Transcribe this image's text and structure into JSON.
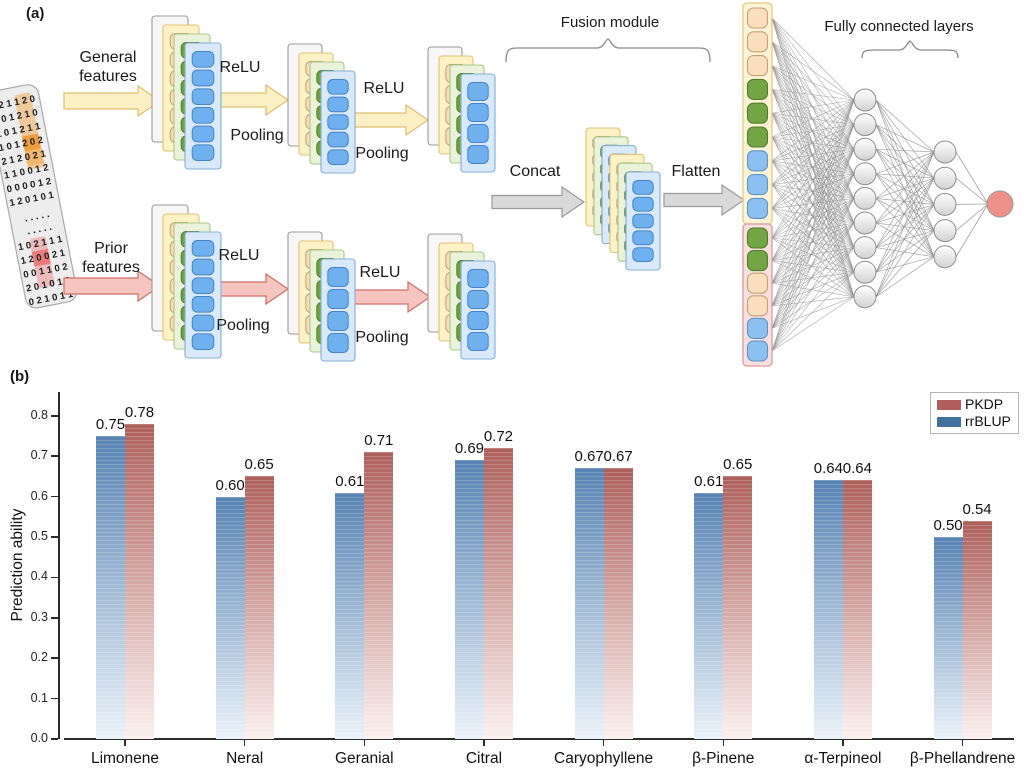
{
  "figure": {
    "panel_a_label": "(a)",
    "panel_b_label": "(b)"
  },
  "diagram": {
    "input_matrix": {
      "top_rows": [
        "0 2 1 1 2 0",
        "0 0 1 2 1 0",
        "1 0 1 2 1 1",
        "1 0 1 2 0 2",
        "2 1 2 0 2 1",
        "1 1 0 0 1 2",
        "0 0 0 0 1 2",
        "1 2 0 1 0 1"
      ],
      "dots_rows": [
        ". . . . .",
        ". . . . ."
      ],
      "bottom_rows": [
        "1 0 2 1 1 1",
        "1 2 0 0 2 1",
        "0 0 1 1 0 2",
        "2 0 1 0 1 2",
        "0 2 1 0 1 1"
      ],
      "top_digit_color": "#2a9a8f",
      "bottom_digit_color": "#e25755",
      "top_highlight_color": "#f09d35",
      "bottom_highlight_color": "#ee7d7d"
    },
    "branch_top": {
      "label_line1": "General",
      "label_line2": "features",
      "relu": "ReLU",
      "pooling": "Pooling"
    },
    "branch_bottom": {
      "label_line1": "Prior",
      "label_line2": "features",
      "relu": "ReLU",
      "pooling": "Pooling"
    },
    "fusion": {
      "concat": "Concat",
      "flatten": "Flatten",
      "module_label": "Fusion module"
    },
    "fc": {
      "label": "Fully connected layers"
    },
    "colors": {
      "yellow_arrow": "#fbf0c4",
      "yellow_arrow_border": "#ddbf6d",
      "pink_arrow": "#f6c5c0",
      "pink_arrow_border": "#cf6e66",
      "gray_arrow": "#d9d9d9",
      "gray_arrow_border": "#9a9a9a",
      "gray_layer": "#f7f7f7",
      "gray_layer_border": "#9a9a9a",
      "yellow_layer": "#fdf2c6",
      "yellow_layer_border": "#e2c272",
      "green_layer": "#eaf3da",
      "green_layer_border": "#a8c888",
      "blue_layer": "#d9e9f9",
      "blue_layer_border": "#85aed6",
      "tan_cell": "#f7dcb4",
      "tan_cell_border": "#c2a274",
      "green_cell": "#6fa43c",
      "green_cell_border": "#507e2a",
      "blue_cell": "#6fb1ee",
      "blue_cell_border": "#4584c6",
      "vector_yellow_box": "#fdf4d7",
      "vector_yellow_border": "#e6c87e",
      "vector_pink_box": "#f9e0e0",
      "vector_pink_border": "#dc9a98",
      "node_stroke": "#8e8e8e",
      "connection": "#909090",
      "output_node": "#f0908a"
    }
  },
  "chart_data": {
    "type": "bar",
    "title": "",
    "xlabel": "",
    "ylabel": "Prediction ability",
    "categories": [
      "Limonene",
      "Neral",
      "Geranial",
      "Citral",
      "Caryophyllene",
      "β-Pinene",
      "α-Terpineol",
      "β-Phellandrene"
    ],
    "series": [
      {
        "name": "PKDP",
        "position": "right",
        "legend_color": "#b25e5c",
        "gradient_top": "#ae605b",
        "gradient_bottom": "#fbf0ee",
        "values": [
          0.78,
          0.65,
          0.71,
          0.72,
          0.67,
          0.65,
          0.64,
          0.54
        ]
      },
      {
        "name": "rrBLUP",
        "position": "left",
        "legend_color": "#41719f",
        "gradient_top": "#5783b3",
        "gradient_bottom": "#eaf2f9",
        "values": [
          0.75,
          0.6,
          0.61,
          0.69,
          0.67,
          0.61,
          0.64,
          0.5
        ]
      }
    ],
    "ylim": [
      0.0,
      0.85
    ],
    "yticks": [
      0.0,
      0.1,
      0.2,
      0.3,
      0.4,
      0.5,
      0.6,
      0.7,
      0.8
    ],
    "value_label_decimals": 2,
    "grid": false,
    "legend_position": "top-right"
  }
}
